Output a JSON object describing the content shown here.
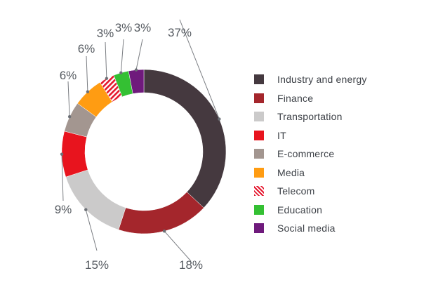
{
  "chart_data": {
    "type": "pie",
    "variant": "donut",
    "title": "",
    "categories": [
      "Industry and energy",
      "Finance",
      "Transportation",
      "IT",
      "E-commerce",
      "Media",
      "Telecom",
      "Education",
      "Social media"
    ],
    "values": [
      37,
      18,
      15,
      9,
      6,
      6,
      3,
      3,
      3
    ],
    "value_labels": [
      "37%",
      "18%",
      "15%",
      "9%",
      "6%",
      "6%",
      "3%",
      "3%",
      "3%"
    ],
    "colors": [
      "#45393f",
      "#a4262c",
      "#cbcaca",
      "#e8141e",
      "#a39690",
      "#ff9c12",
      "#e5162d",
      "#34c033",
      "#6f1a7c"
    ],
    "patterns": [
      "solid",
      "solid",
      "solid",
      "solid",
      "solid",
      "solid",
      "diagonal-stripes",
      "solid",
      "solid"
    ],
    "legend_position": "right",
    "start": "top",
    "direction": "clockwise"
  }
}
